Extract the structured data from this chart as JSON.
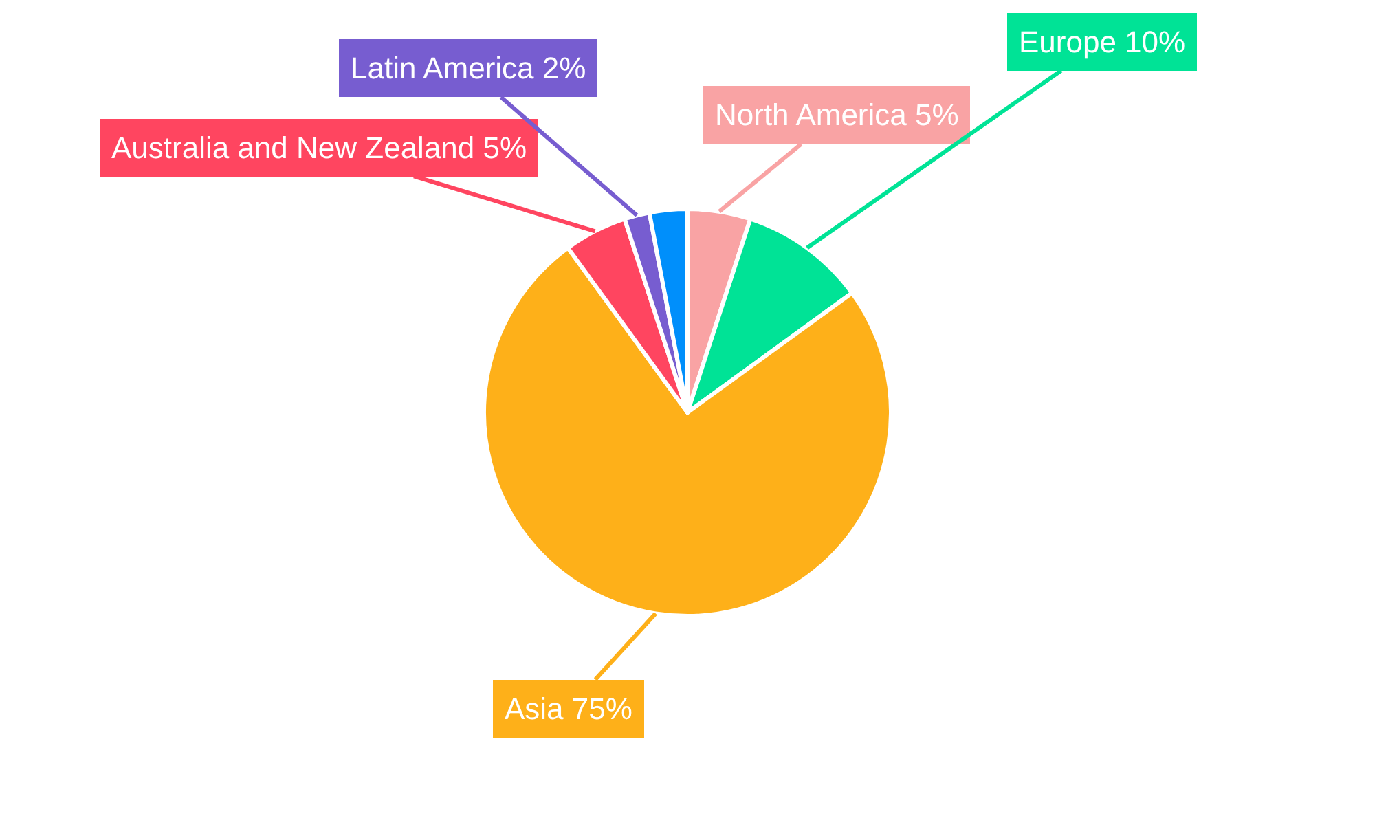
{
  "chart_data": {
    "type": "pie",
    "categories": [
      "North America",
      "Europe",
      "Asia",
      "Australia and New Zealand",
      "Latin America",
      null
    ],
    "values": [
      5,
      10,
      75,
      5,
      2,
      3
    ],
    "colors": [
      "#f9a3a4",
      "#00e396",
      "#feb019",
      "#ff4560",
      "#775dd0",
      "#008ffb"
    ],
    "value_labels": [
      "5%",
      "10%",
      "75%",
      "5%",
      "2%",
      null
    ],
    "legend": false
  }
}
